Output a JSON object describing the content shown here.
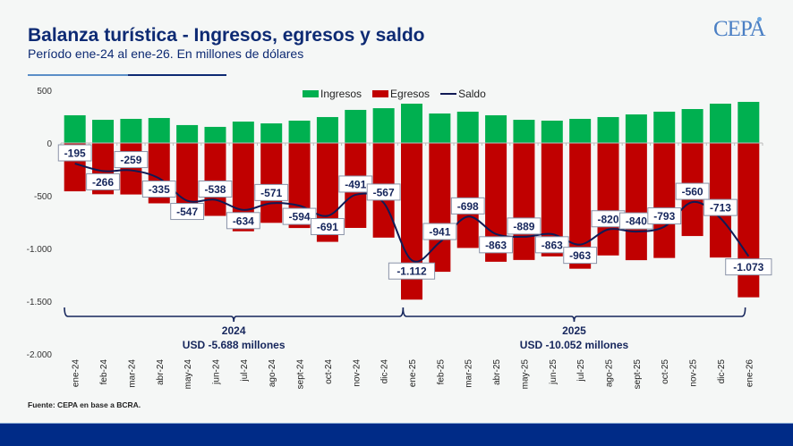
{
  "header": {
    "title": "Balanza turística - Ingresos, egresos y saldo",
    "subtitle": "Período ene-24 al ene-26. En millones de dólares",
    "logo": "CEPA"
  },
  "footer": {
    "source": "Fuente: CEPA en base a BCRA."
  },
  "colors": {
    "ingresos": "#00b050",
    "egresos": "#c00000",
    "saldo": "#101a55",
    "brand": "#0d2a73",
    "footer_band": "#002b87"
  },
  "chart_data": {
    "type": "bar",
    "title": "Balanza turística - Ingresos, egresos y saldo",
    "ylabel": "",
    "xlabel": "",
    "ylim": [
      -2000,
      500
    ],
    "yticks": [
      500,
      0,
      -500,
      -1000,
      -1500,
      -2000
    ],
    "ytick_labels": [
      "500",
      "0",
      "-500",
      "-1.000",
      "-1.500",
      "-2.000"
    ],
    "legend_position": "top-center",
    "legend": [
      "Ingresos",
      "Egresos",
      "Saldo"
    ],
    "categories": [
      "ene-24",
      "feb-24",
      "mar-24",
      "abr-24",
      "may-24",
      "jun-24",
      "jul-24",
      "ago-24",
      "sept-24",
      "oct-24",
      "nov-24",
      "dic-24",
      "ene-25",
      "feb-25",
      "mar-25",
      "abr-25",
      "may-25",
      "jun-25",
      "jul-25",
      "ago-25",
      "sept-25",
      "oct-25",
      "nov-25",
      "dic-25",
      "ene-26"
    ],
    "series": [
      {
        "name": "Ingresos",
        "type": "bar",
        "values": [
          263,
          220,
          229,
          237,
          170,
          153,
          203,
          186,
          212,
          246,
          314,
          330,
          373,
          280,
          297,
          263,
          220,
          212,
          229,
          246,
          271,
          297,
          322,
          373,
          390
        ]
      },
      {
        "name": "Egresos",
        "type": "bar",
        "values": [
          -458,
          -486,
          -488,
          -572,
          -717,
          -691,
          -837,
          -757,
          -806,
          -937,
          -805,
          -897,
          -1485,
          -1221,
          -995,
          -1126,
          -1109,
          -1075,
          -1192,
          -1066,
          -1111,
          -1090,
          -882,
          -1086,
          -1463
        ]
      },
      {
        "name": "Saldo",
        "type": "line",
        "values": [
          -195,
          -266,
          -259,
          -335,
          -547,
          -538,
          -634,
          -571,
          -594,
          -691,
          -491,
          -567,
          -1112,
          -941,
          -698,
          -863,
          -889,
          -863,
          -963,
          -820,
          -840,
          -793,
          -560,
          -713,
          -1073
        ],
        "labels": [
          "-195",
          "-266",
          "-259",
          "-335",
          "-547",
          "-538",
          "-634",
          "-571",
          "-594",
          "-691",
          "-491",
          "-567",
          "-1.112",
          "-941",
          "-698",
          "-863",
          "-889",
          "-863",
          "-963",
          "-820",
          "-840",
          "-793",
          "-560",
          "-713",
          "-1.073"
        ]
      }
    ],
    "annotations": [
      {
        "year": "2024",
        "total": "USD -5.688 millones",
        "from": "ene-24",
        "to": "dic-24"
      },
      {
        "year": "2025",
        "total": "USD -10.052 millones",
        "from": "ene-25",
        "to": "dic-25"
      }
    ]
  }
}
